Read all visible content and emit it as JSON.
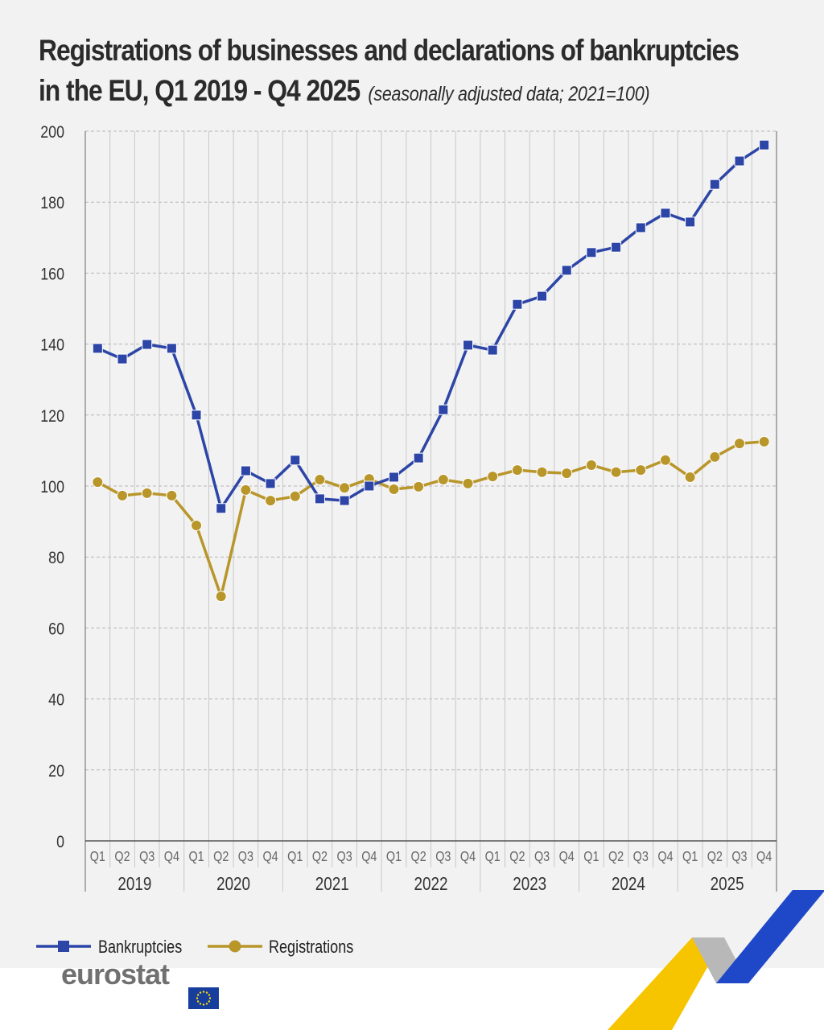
{
  "title": "Registrations of businesses and declarations of bankruptcies in the EU, Q1 2019 - Q4 2025",
  "title_line1": "Registrations of businesses and declarations of bankruptcies",
  "title_line2": "in the EU, Q1 2019 - Q4 2025",
  "subtitle": "(seasonally adjusted data; 2021=100)",
  "logo_text": "eurostat",
  "chart_data": {
    "type": "line",
    "title": "Registrations of businesses and declarations of bankruptcies in the EU, Q1 2019 - Q4 2025",
    "subtitle": "(seasonally adjusted data; 2021=100)",
    "quarters": [
      "Q1",
      "Q2",
      "Q3",
      "Q4"
    ],
    "years": [
      "2019",
      "2020",
      "2021",
      "2022",
      "2023",
      "2024",
      "2025"
    ],
    "ylim": [
      0,
      200
    ],
    "yticks": [
      0,
      20,
      40,
      60,
      80,
      100,
      120,
      140,
      160,
      180,
      200
    ],
    "grid": true,
    "legend_position": "bottom-left",
    "series": [
      {
        "name": "Bankruptcies",
        "color": "#2c45a6",
        "marker": "square",
        "values": [
          138.8,
          135.8,
          139.9,
          138.8,
          120.0,
          93.7,
          104.3,
          100.7,
          107.3,
          96.4,
          95.9,
          100.0,
          102.5,
          107.9,
          121.5,
          139.7,
          138.3,
          151.2,
          153.5,
          160.8,
          165.8,
          167.3,
          172.8,
          176.9,
          174.4,
          185.0,
          191.6,
          196.1
        ]
      },
      {
        "name": "Registrations",
        "color": "#b8962a",
        "marker": "circle",
        "values": [
          101.1,
          97.3,
          98.0,
          97.3,
          88.9,
          68.9,
          98.9,
          95.9,
          97.1,
          101.8,
          99.5,
          102.0,
          99.1,
          99.8,
          101.8,
          100.7,
          102.7,
          104.5,
          103.9,
          103.6,
          105.9,
          103.9,
          104.5,
          107.3,
          102.5,
          108.2,
          112.0,
          112.5
        ]
      }
    ]
  }
}
